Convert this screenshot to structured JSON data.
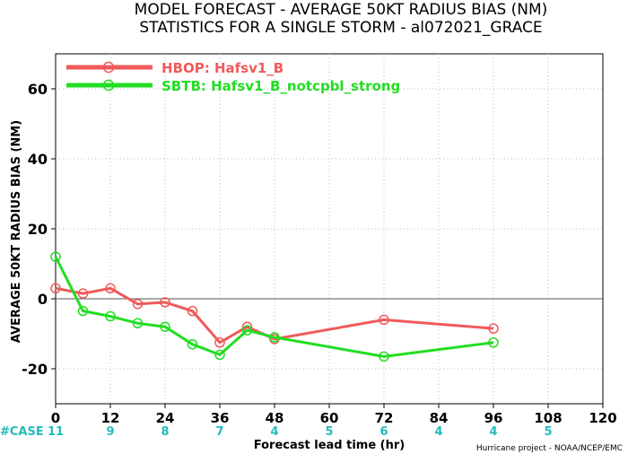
{
  "chart_data": {
    "type": "line",
    "title": "MODEL FORECAST - AVERAGE 50KT RADIUS BIAS (NM)",
    "subtitle": "STATISTICS FOR A SINGLE STORM - al072021_GRACE",
    "xlabel": "Forecast lead time (hr)",
    "ylabel": "AVERAGE 50KT RADIUS BIAS (NM)",
    "xlim": [
      0,
      120
    ],
    "ylim": [
      -30,
      70
    ],
    "xticks": [
      0,
      12,
      24,
      36,
      48,
      60,
      72,
      84,
      96,
      108,
      120
    ],
    "yticks": [
      -20,
      0,
      20,
      40,
      60
    ],
    "grid": true,
    "legend_position": "top-left",
    "series": [
      {
        "name": "HBOP: Hafsv1_B",
        "color": "#f05a5a",
        "x": [
          0,
          6,
          12,
          18,
          24,
          30,
          36,
          42,
          48,
          72,
          96
        ],
        "y": [
          3,
          1.5,
          3,
          -1.5,
          -1,
          -3.5,
          -12.5,
          -8,
          -11.5,
          -6,
          -8.5
        ]
      },
      {
        "name": "SBTB: Hafsv1_B_notcpbl_strong",
        "color": "#22dd22",
        "x": [
          0,
          6,
          12,
          18,
          24,
          30,
          36,
          42,
          48,
          72,
          96
        ],
        "y": [
          12,
          -3.5,
          -5,
          -7,
          -8,
          -13,
          -16,
          -9,
          -11,
          -16.5,
          -12.5
        ]
      }
    ],
    "case_label": "#CASE",
    "case_color": "#22bbbb",
    "cases": [
      {
        "x": 0,
        "label": "11"
      },
      {
        "x": 12,
        "label": "9"
      },
      {
        "x": 24,
        "label": "8"
      },
      {
        "x": 36,
        "label": "7"
      },
      {
        "x": 48,
        "label": "4"
      },
      {
        "x": 60,
        "label": "5"
      },
      {
        "x": 72,
        "label": "6"
      },
      {
        "x": 84,
        "label": "4"
      },
      {
        "x": 96,
        "label": "4"
      },
      {
        "x": 108,
        "label": "5"
      }
    ],
    "credit": "Hurricane project - NOAA/NCEP/EMC"
  }
}
